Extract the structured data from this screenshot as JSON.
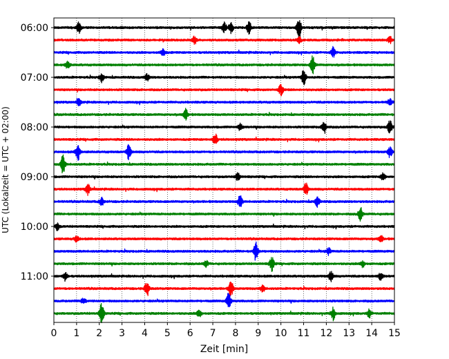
{
  "chart_data": {
    "type": "line",
    "title": "",
    "xlabel": "Zeit  [min]",
    "ylabel": "UTC (Lokalzeit = UTC + 02:00)",
    "xlim": [
      0,
      15
    ],
    "xticks": [
      0,
      1,
      2,
      3,
      4,
      5,
      6,
      7,
      8,
      9,
      10,
      11,
      12,
      13,
      14,
      15
    ],
    "x_grid": "dotted vertical lines at each minute",
    "yticks": [
      "06:00",
      "07:00",
      "08:00",
      "09:00",
      "10:00",
      "11:00"
    ],
    "trace_interval_min": 15,
    "color_cycle": [
      "#000000",
      "#ff0000",
      "#0000ff",
      "#008000"
    ],
    "series": [
      {
        "start": "06:00",
        "color": "#000000",
        "events": [
          [
            1.1,
            0.45
          ],
          [
            7.5,
            0.5
          ],
          [
            7.8,
            0.5
          ],
          [
            8.6,
            0.6
          ],
          [
            10.8,
            1.0
          ]
        ]
      },
      {
        "start": "06:15",
        "color": "#ff0000",
        "events": [
          [
            6.2,
            0.35
          ],
          [
            10.8,
            0.3
          ],
          [
            14.8,
            0.3
          ]
        ]
      },
      {
        "start": "06:30",
        "color": "#0000ff",
        "events": [
          [
            4.8,
            0.35
          ],
          [
            12.3,
            0.45
          ]
        ]
      },
      {
        "start": "06:45",
        "color": "#008000",
        "events": [
          [
            0.6,
            0.35
          ],
          [
            11.4,
            0.85
          ]
        ]
      },
      {
        "start": "07:00",
        "color": "#000000",
        "events": [
          [
            2.1,
            0.4
          ],
          [
            4.1,
            0.3
          ],
          [
            11.0,
            0.7
          ]
        ]
      },
      {
        "start": "07:15",
        "color": "#ff0000",
        "events": [
          [
            10.0,
            0.5
          ]
        ]
      },
      {
        "start": "07:30",
        "color": "#0000ff",
        "events": [
          [
            1.1,
            0.3
          ],
          [
            14.8,
            0.3
          ]
        ]
      },
      {
        "start": "07:45",
        "color": "#008000",
        "events": [
          [
            5.8,
            0.5
          ]
        ]
      },
      {
        "start": "08:00",
        "color": "#000000",
        "events": [
          [
            8.2,
            0.3
          ],
          [
            11.9,
            0.6
          ],
          [
            14.8,
            0.7
          ]
        ]
      },
      {
        "start": "08:15",
        "color": "#ff0000",
        "events": [
          [
            7.1,
            0.55
          ]
        ]
      },
      {
        "start": "08:30",
        "color": "#0000ff",
        "events": [
          [
            1.05,
            0.8
          ],
          [
            3.3,
            0.7
          ],
          [
            14.8,
            0.5
          ]
        ]
      },
      {
        "start": "08:45",
        "color": "#008000",
        "events": [
          [
            0.4,
            0.85
          ]
        ]
      },
      {
        "start": "09:00",
        "color": "#000000",
        "events": [
          [
            8.1,
            0.4
          ],
          [
            14.5,
            0.35
          ]
        ]
      },
      {
        "start": "09:15",
        "color": "#ff0000",
        "events": [
          [
            1.5,
            0.5
          ],
          [
            11.1,
            0.55
          ]
        ]
      },
      {
        "start": "09:30",
        "color": "#0000ff",
        "events": [
          [
            2.1,
            0.35
          ],
          [
            8.2,
            0.55
          ],
          [
            11.6,
            0.5
          ]
        ]
      },
      {
        "start": "09:45",
        "color": "#008000",
        "events": [
          [
            13.5,
            0.6
          ]
        ]
      },
      {
        "start": "10:00",
        "color": "#000000",
        "events": [
          [
            0.15,
            0.3
          ]
        ]
      },
      {
        "start": "10:15",
        "color": "#ff0000",
        "events": [
          [
            1.0,
            0.3
          ],
          [
            14.4,
            0.3
          ]
        ]
      },
      {
        "start": "10:30",
        "color": "#0000ff",
        "events": [
          [
            8.9,
            0.85
          ],
          [
            12.1,
            0.3
          ]
        ]
      },
      {
        "start": "10:45",
        "color": "#008000",
        "events": [
          [
            6.7,
            0.3
          ],
          [
            9.6,
            0.65
          ],
          [
            13.6,
            0.3
          ]
        ]
      },
      {
        "start": "11:00",
        "color": "#000000",
        "events": [
          [
            0.5,
            0.4
          ],
          [
            12.2,
            0.45
          ],
          [
            14.4,
            0.35
          ]
        ]
      },
      {
        "start": "11:15",
        "color": "#ff0000",
        "events": [
          [
            4.1,
            0.7
          ],
          [
            7.8,
            0.75
          ],
          [
            9.2,
            0.3
          ]
        ]
      },
      {
        "start": "11:30",
        "color": "#0000ff",
        "events": [
          [
            1.3,
            0.3
          ],
          [
            7.7,
            0.8
          ]
        ]
      },
      {
        "start": "11:45",
        "color": "#008000",
        "events": [
          [
            2.1,
            1.0
          ],
          [
            6.4,
            0.35
          ],
          [
            12.3,
            0.6
          ],
          [
            13.9,
            0.35
          ]
        ]
      }
    ]
  }
}
